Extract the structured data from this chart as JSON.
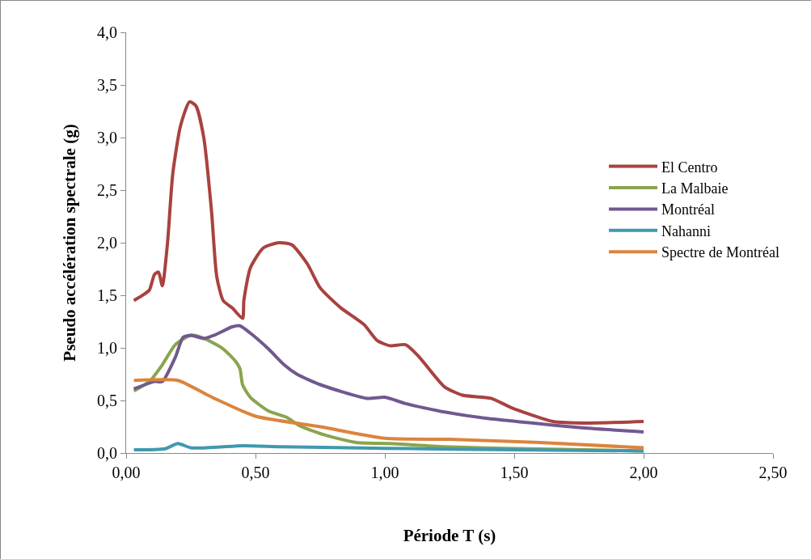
{
  "chart_data": {
    "type": "line",
    "xlabel": "Période T (s)",
    "ylabel": "Pseudo accélération spectrale (g)",
    "xlim": [
      0,
      2.5
    ],
    "ylim": [
      0,
      4
    ],
    "xticks": [
      {
        "value": 0,
        "label": "0,00"
      },
      {
        "value": 0.5,
        "label": "0,50"
      },
      {
        "value": 1,
        "label": "1,00"
      },
      {
        "value": 1.5,
        "label": "1,50"
      },
      {
        "value": 2,
        "label": "2,00"
      },
      {
        "value": 2.5,
        "label": "2,50"
      }
    ],
    "yticks": [
      {
        "value": 0,
        "label": "0,0"
      },
      {
        "value": 0.5,
        "label": "0,5"
      },
      {
        "value": 1,
        "label": "1,0"
      },
      {
        "value": 1.5,
        "label": "1,5"
      },
      {
        "value": 2,
        "label": "2,0"
      },
      {
        "value": 2.5,
        "label": "2,5"
      },
      {
        "value": 3,
        "label": "3,0"
      },
      {
        "value": 3.5,
        "label": "3,5"
      },
      {
        "value": 4,
        "label": "4,0"
      }
    ],
    "grid": false,
    "legend": "right",
    "marker": "none",
    "line_style": "solid",
    "series": [
      {
        "name": "El Centro",
        "color": "#a9423f",
        "x": [
          0.03,
          0.07,
          0.09,
          0.11,
          0.125,
          0.14,
          0.16,
          0.18,
          0.21,
          0.245,
          0.27,
          0.3,
          0.33,
          0.35,
          0.375,
          0.41,
          0.45,
          0.455,
          0.48,
          0.53,
          0.59,
          0.64,
          0.7,
          0.75,
          0.83,
          0.92,
          0.97,
          1.02,
          1.08,
          1.13,
          1.23,
          1.3,
          1.41,
          1.49,
          1.65,
          1.78,
          2.0
        ],
        "values": [
          1.45,
          1.51,
          1.55,
          1.7,
          1.72,
          1.59,
          2.0,
          2.65,
          3.11,
          3.34,
          3.3,
          3.0,
          2.3,
          1.68,
          1.45,
          1.38,
          1.28,
          1.45,
          1.76,
          1.95,
          2.0,
          1.98,
          1.8,
          1.57,
          1.38,
          1.22,
          1.07,
          1.02,
          1.03,
          0.92,
          0.63,
          0.55,
          0.52,
          0.43,
          0.3,
          0.285,
          0.3
        ]
      },
      {
        "name": "La Malbaie",
        "color": "#89a54e",
        "x": [
          0.03,
          0.09,
          0.14,
          0.19,
          0.25,
          0.31,
          0.375,
          0.42,
          0.44,
          0.45,
          0.48,
          0.55,
          0.62,
          0.67,
          0.77,
          0.89,
          1.02,
          1.23,
          1.55,
          2.0
        ],
        "values": [
          0.59,
          0.68,
          0.84,
          1.03,
          1.12,
          1.08,
          0.99,
          0.88,
          0.8,
          0.65,
          0.53,
          0.4,
          0.34,
          0.26,
          0.17,
          0.1,
          0.09,
          0.06,
          0.04,
          0.02
        ]
      },
      {
        "name": "Montréal",
        "color": "#71588f",
        "x": [
          0.03,
          0.11,
          0.14,
          0.19,
          0.22,
          0.25,
          0.3,
          0.34,
          0.41,
          0.44,
          0.48,
          0.55,
          0.61,
          0.66,
          0.75,
          0.93,
          1.0,
          1.08,
          1.17,
          1.23,
          1.39,
          1.55,
          1.76,
          2.0
        ],
        "values": [
          0.61,
          0.68,
          0.68,
          0.91,
          1.1,
          1.12,
          1.09,
          1.12,
          1.2,
          1.21,
          1.14,
          0.99,
          0.84,
          0.75,
          0.65,
          0.52,
          0.53,
          0.47,
          0.42,
          0.39,
          0.33,
          0.29,
          0.24,
          0.2
        ]
      },
      {
        "name": "Nahanni",
        "color": "#4198af",
        "x": [
          0.03,
          0.15,
          0.2,
          0.25,
          0.35,
          0.45,
          0.6,
          1.0,
          1.5,
          2.0
        ],
        "values": [
          0.03,
          0.04,
          0.09,
          0.05,
          0.055,
          0.07,
          0.06,
          0.045,
          0.03,
          0.02
        ]
      },
      {
        "name": "Spectre de Montréal",
        "color": "#db843d",
        "x": [
          0.03,
          0.2,
          0.3,
          0.35,
          0.5,
          0.75,
          1.0,
          1.25,
          1.6,
          2.0
        ],
        "values": [
          0.69,
          0.69,
          0.57,
          0.51,
          0.35,
          0.25,
          0.14,
          0.13,
          0.1,
          0.05
        ]
      }
    ]
  }
}
